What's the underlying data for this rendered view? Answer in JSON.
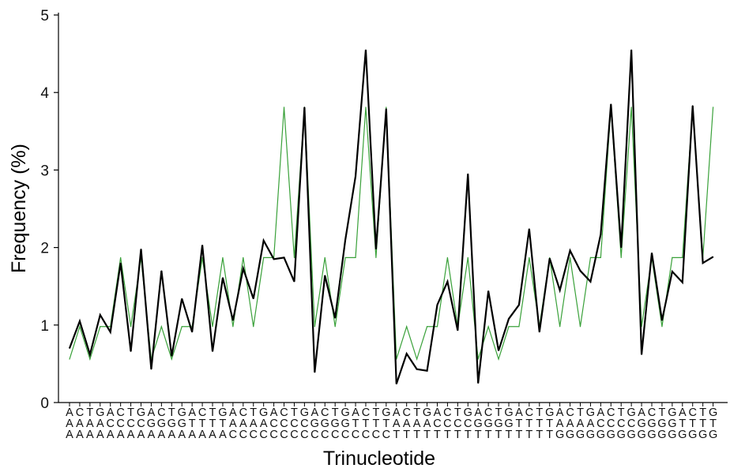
{
  "chart_data": {
    "type": "line",
    "xlabel": "Trinucleotide",
    "ylabel": "Frequency (%)",
    "ylim": [
      0,
      5
    ],
    "yticks": [
      0,
      1,
      2,
      3,
      4,
      5
    ],
    "grid": false,
    "categories": [
      "AAA",
      "CAA",
      "GAA",
      "TAA",
      "ACA",
      "CCA",
      "GCA",
      "TCA",
      "AGA",
      "CGA",
      "GGA",
      "TGA",
      "ATA",
      "CTA",
      "GTA",
      "TTA",
      "AAC",
      "CAC",
      "GAC",
      "TAC",
      "ACC",
      "CCC",
      "GCC",
      "TCC",
      "AGC",
      "CGC",
      "GGC",
      "TGC",
      "ATC",
      "CTC",
      "GTC",
      "TTC",
      "AAT",
      "CAT",
      "GAT",
      "TAT",
      "ACT",
      "CCT",
      "GCT",
      "TCT",
      "AGT",
      "CGT",
      "GGT",
      "TGT",
      "ATT",
      "CTT",
      "GTT",
      "TTT",
      "AAG",
      "CAG",
      "GAG",
      "TAG",
      "ACG",
      "CCG",
      "GCG",
      "TCG",
      "AGG",
      "CGG",
      "GGG",
      "TGG",
      "ATG",
      "CTG",
      "GTG",
      "TTG"
    ],
    "label_rows": {
      "row1": "ACTGACTGACTGACTGACTGACTGACTGACTGACTGACTGACTGACTGACTGACTGACTGACTG",
      "row2": "AAAACCCCGGGGTTTTAAAACCCCGGGGTTTTAAAACCCCGGGGTTTTAAAACCCCGGGGTTTT",
      "row3": "AAAAAAAAAAAAAAAACCCCCCCCCCCCCCCCTTTTTTTTTTTTTTTTGGGGGGGGGGGGGGGG"
    },
    "series": [
      {
        "color": "#000000",
        "values": [
          0.7,
          1.05,
          0.62,
          1.13,
          0.91,
          1.8,
          0.66,
          1.98,
          0.43,
          1.7,
          0.6,
          1.34,
          0.91,
          2.03,
          0.66,
          1.61,
          1.06,
          1.73,
          1.34,
          2.09,
          1.85,
          1.87,
          1.56,
          3.81,
          0.39,
          1.64,
          1.09,
          2.1,
          2.92,
          4.55,
          1.98,
          3.79,
          0.24,
          0.63,
          0.43,
          0.41,
          1.26,
          1.56,
          0.93,
          2.95,
          0.25,
          1.44,
          0.67,
          1.08,
          1.26,
          2.24,
          0.91,
          1.86,
          1.45,
          1.96,
          1.7,
          1.56,
          2.17,
          3.85,
          2.0,
          4.55,
          0.62,
          1.93,
          1.06,
          1.69,
          1.55,
          3.83,
          1.8,
          1.88
        ]
      },
      {
        "color": "#3aa13a",
        "values": [
          0.56,
          0.98,
          0.56,
          0.98,
          0.98,
          1.87,
          0.98,
          1.87,
          0.56,
          0.98,
          0.56,
          0.98,
          0.98,
          1.87,
          0.98,
          1.87,
          0.98,
          1.87,
          0.98,
          1.87,
          1.87,
          3.81,
          1.87,
          3.81,
          0.98,
          1.87,
          0.98,
          1.87,
          1.87,
          3.81,
          1.87,
          3.81,
          0.56,
          0.98,
          0.56,
          0.98,
          0.98,
          1.87,
          0.98,
          1.87,
          0.56,
          0.98,
          0.56,
          0.98,
          0.98,
          1.87,
          0.98,
          1.87,
          0.98,
          1.87,
          0.98,
          1.87,
          1.87,
          3.81,
          1.87,
          3.81,
          0.98,
          1.87,
          0.98,
          1.87,
          1.87,
          3.81,
          1.87,
          3.81
        ]
      }
    ]
  }
}
